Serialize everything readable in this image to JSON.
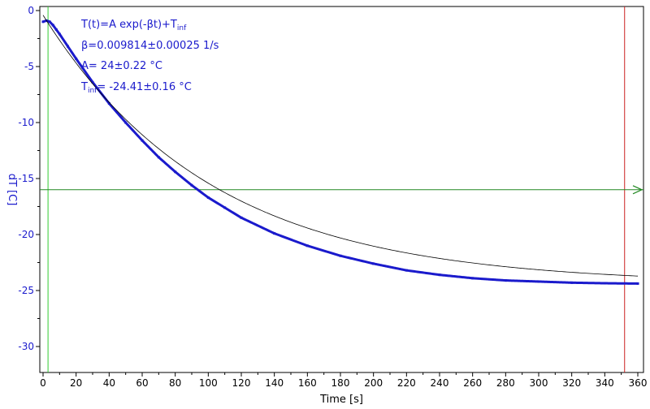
{
  "chart_data": {
    "type": "line",
    "xlabel": "Time [s]",
    "ylabel": "dT [C]",
    "xlim": [
      0,
      360
    ],
    "ylim": [
      -32.5,
      0
    ],
    "x_ticks": [
      0,
      20,
      40,
      60,
      80,
      100,
      120,
      140,
      160,
      180,
      200,
      220,
      240,
      260,
      280,
      300,
      320,
      340,
      360
    ],
    "y_ticks": [
      0,
      -5,
      -10,
      -15,
      -20,
      -25,
      -30
    ],
    "grid": false,
    "colors": {
      "data": "#1a1acc",
      "fit": "#000000",
      "left_cursor": "#33cc33",
      "right_cursor": "#cc2222",
      "horizontal_cursor": "#228822",
      "tick_labels_y": "#1a1acc"
    },
    "fit": {
      "model": "exponential",
      "beta": 0.009814,
      "A": 24,
      "T_inf": -24.41
    },
    "series": [
      {
        "x": [
          0,
          2,
          4,
          6,
          8,
          10,
          15,
          20,
          30,
          40,
          50,
          60,
          70,
          80,
          90,
          100,
          110,
          120,
          140,
          160,
          180,
          200,
          220,
          240,
          260,
          280,
          300,
          320,
          340,
          360
        ],
        "y": [
          -1.0,
          -0.9,
          -1.0,
          -1.3,
          -1.7,
          -2.1,
          -3.2,
          -4.3,
          -6.4,
          -8.3,
          -10.0,
          -11.6,
          -13.1,
          -14.4,
          -15.6,
          -16.7,
          -17.6,
          -18.5,
          -19.9,
          -21.0,
          -21.9,
          -22.6,
          -23.2,
          -23.6,
          -23.9,
          -24.1,
          -24.2,
          -24.3,
          -24.35,
          -24.38
        ]
      }
    ],
    "cursors": {
      "vertical": [
        3,
        352
      ],
      "horizontal": -16
    },
    "annotations": {
      "line1_main": "T(t)=A exp(-βt)+T",
      "line1_sub": "inf",
      "line2": "β=0.009814±0.00025 1/s",
      "line3": "A= 24±0.22 °C",
      "line4_prefix": "T",
      "line4_sub": "inf",
      "line4_rest": "= -24.41±0.16 °C"
    }
  }
}
